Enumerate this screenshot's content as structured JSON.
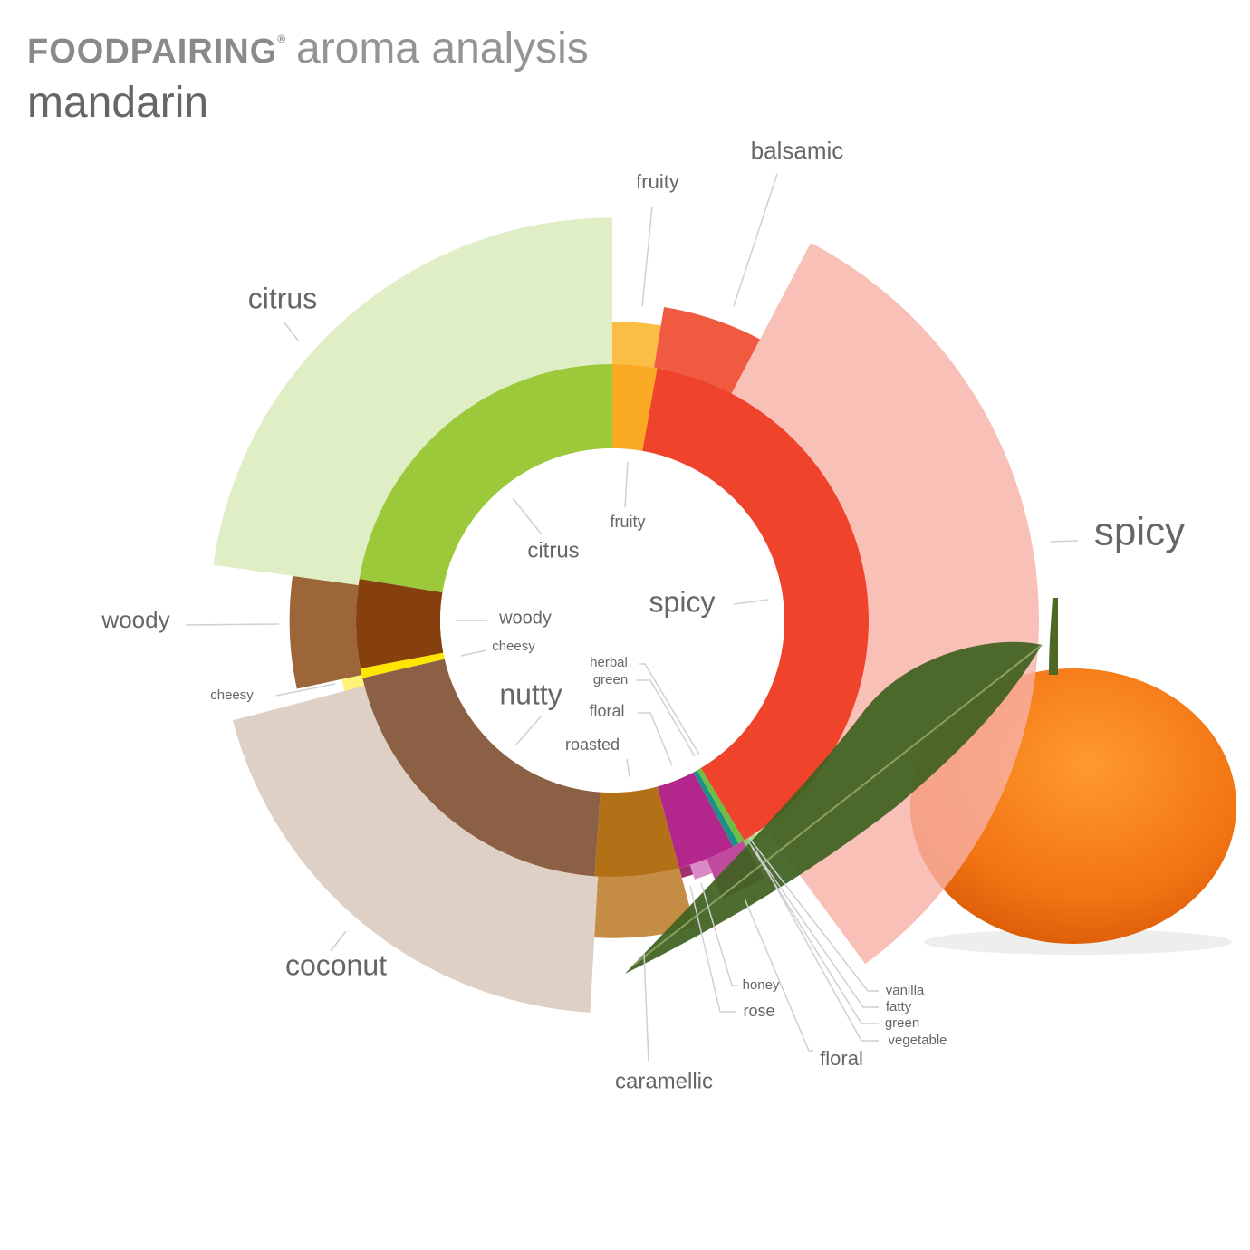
{
  "header": {
    "logo": "FOODPAIRING",
    "logo_mark": "®",
    "subtitle": "aroma analysis",
    "title": "mandarin"
  },
  "chart_data": {
    "type": "sunburst",
    "title": "mandarin",
    "inner_ring": [
      {
        "name": "fruity",
        "share": 2.8,
        "color": "#F9AA22"
      },
      {
        "name": "spicy",
        "share": 38.6,
        "color": "#EF432B"
      },
      {
        "name": "green",
        "share": 0.4,
        "color": "#6DBE45"
      },
      {
        "name": "herbal",
        "share": 0.4,
        "color": "#1A9088"
      },
      {
        "name": "floral",
        "share": 3.6,
        "color": "#B3278D"
      },
      {
        "name": "roasted",
        "share": 5.3,
        "color": "#B27116"
      },
      {
        "name": "nutty",
        "share": 20.3,
        "color": "#8C6044"
      },
      {
        "name": "cheesy",
        "share": 0.6,
        "color": "#FFE600"
      },
      {
        "name": "woody",
        "share": 5.6,
        "color": "#85400E"
      },
      {
        "name": "citrus",
        "share": 22.4,
        "color": "#9BC93A"
      }
    ],
    "outer_ring": [
      {
        "name": "fruity",
        "share": 2.6,
        "intensity": 25,
        "color": "#FBBE45"
      },
      {
        "name": "balsamic",
        "share": 5.1,
        "intensity": 36,
        "color": "#EF5A41"
      },
      {
        "name": "spicy",
        "share": 32.2,
        "intensity": 100,
        "color": "#F7B0A6"
      },
      {
        "name": "vanilla",
        "share": 0.4,
        "intensity": 4,
        "color": "#C9D8A0"
      },
      {
        "name": "fatty",
        "share": 0.4,
        "intensity": 4,
        "color": "#D8E6A8"
      },
      {
        "name": "green",
        "share": 0.4,
        "intensity": 4,
        "color": "#A8D58A"
      },
      {
        "name": "vegetable",
        "share": 0.4,
        "intensity": 4,
        "color": "#8CC870"
      },
      {
        "name": "floral",
        "share": 2.5,
        "intensity": 25,
        "color": "#BF4A9E"
      },
      {
        "name": "rose",
        "share": 1.1,
        "intensity": 9,
        "color": "#DA8AC6"
      },
      {
        "name": "honey",
        "share": 0.7,
        "intensity": 6,
        "color": "#A0306E"
      },
      {
        "name": "caramellic",
        "share": 5.1,
        "intensity": 36,
        "color": "#C48C45"
      },
      {
        "name": "coconut",
        "share": 20.0,
        "intensity": 80,
        "color": "#DFD0C6"
      },
      {
        "name": "cheesy",
        "share": 0.7,
        "intensity": 12,
        "color": "#FFF27A"
      },
      {
        "name": "woody",
        "share": 5.6,
        "intensity": 39,
        "color": "#9C6638"
      },
      {
        "name": "citrus",
        "share": 22.8,
        "intensity": 86,
        "color": "#E0EEC6"
      }
    ]
  }
}
